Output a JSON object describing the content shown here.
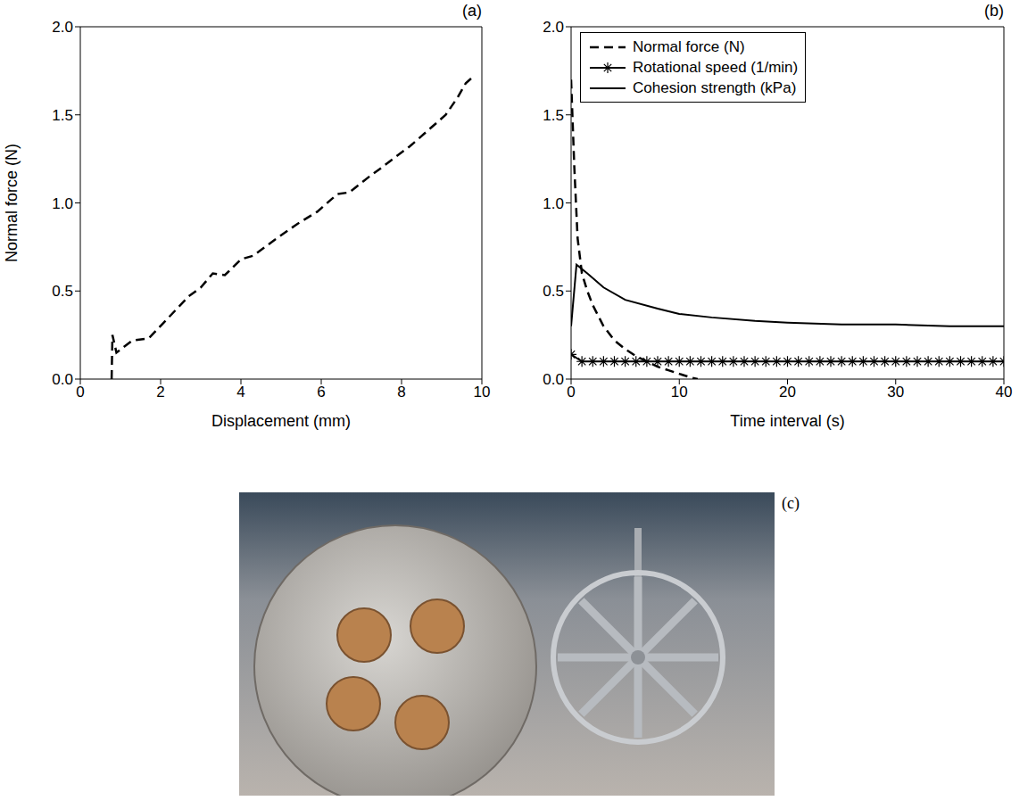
{
  "chart_data": [
    {
      "panel": "(a)",
      "type": "line",
      "xlabel": "Displacement (mm)",
      "ylabel": "Normal force (N)",
      "xlim": [
        0,
        10
      ],
      "xticks": [
        0,
        2,
        4,
        6,
        8,
        10
      ],
      "ylim": [
        0,
        2.0
      ],
      "yticks": [
        {
          "value": 0,
          "label": "0.0"
        },
        {
          "value": 0.5,
          "label": "0.5"
        },
        {
          "value": 1.0,
          "label": "1.0"
        },
        {
          "value": 1.5,
          "label": "1.5"
        },
        {
          "value": 2.0,
          "label": "2.0"
        }
      ],
      "grid": false,
      "color": "#000000",
      "line_style": "dashed",
      "x": [
        0.78,
        0.8,
        0.9,
        1.3,
        1.7,
        2.2,
        2.7,
        3.0,
        3.3,
        3.6,
        4.0,
        4.3,
        4.9,
        5.4,
        5.9,
        6.4,
        6.7,
        7.2,
        7.5,
        7.9,
        8.2,
        8.6,
        9.1,
        9.4,
        9.6,
        9.8
      ],
      "values": [
        0.0,
        0.25,
        0.15,
        0.22,
        0.23,
        0.35,
        0.47,
        0.52,
        0.6,
        0.59,
        0.68,
        0.7,
        0.8,
        0.88,
        0.95,
        1.05,
        1.06,
        1.15,
        1.2,
        1.27,
        1.32,
        1.4,
        1.5,
        1.6,
        1.68,
        1.72
      ]
    },
    {
      "panel": "(b)",
      "type": "line",
      "xlabel": "Time interval (s)",
      "xlim": [
        0,
        40
      ],
      "xticks": [
        0,
        10,
        20,
        30,
        40
      ],
      "ylim": [
        0,
        2.0
      ],
      "yticks": [
        {
          "value": 0,
          "label": "0.0"
        },
        {
          "value": 0.5,
          "label": "0.5"
        },
        {
          "value": 1.0,
          "label": "1.0"
        },
        {
          "value": 1.5,
          "label": "1.5"
        },
        {
          "value": 2.0,
          "label": "2.0"
        }
      ],
      "grid": false,
      "legend": "upper left",
      "series": [
        {
          "name": "Normal force (N)",
          "color": "#000000",
          "line_style": "dashed",
          "marker": "none",
          "x": [
            0,
            0.3,
            0.6,
            1,
            1.5,
            2,
            3,
            4,
            5,
            6,
            7,
            8,
            9,
            10,
            11,
            11.7
          ],
          "values": [
            1.7,
            1.2,
            0.8,
            0.6,
            0.5,
            0.42,
            0.3,
            0.22,
            0.17,
            0.13,
            0.1,
            0.07,
            0.05,
            0.03,
            0.01,
            0.0
          ]
        },
        {
          "name": "Rotational speed (1/min)",
          "color": "#000000",
          "line_style": "solid",
          "marker": "asterisk",
          "x": [
            0,
            1,
            2,
            3,
            4,
            5,
            6,
            7,
            8,
            9,
            10,
            11,
            12,
            13,
            14,
            15,
            16,
            17,
            18,
            19,
            20,
            21,
            22,
            23,
            24,
            25,
            26,
            27,
            28,
            29,
            30,
            31,
            32,
            33,
            34,
            35,
            36,
            37,
            38,
            39,
            40
          ],
          "values": [
            0.14,
            0.1,
            0.1,
            0.1,
            0.1,
            0.1,
            0.1,
            0.1,
            0.1,
            0.1,
            0.1,
            0.1,
            0.1,
            0.1,
            0.1,
            0.1,
            0.1,
            0.1,
            0.1,
            0.1,
            0.1,
            0.1,
            0.1,
            0.1,
            0.1,
            0.1,
            0.1,
            0.1,
            0.1,
            0.1,
            0.1,
            0.1,
            0.1,
            0.1,
            0.1,
            0.1,
            0.1,
            0.1,
            0.1,
            0.1,
            0.1
          ]
        },
        {
          "name": "Cohesion strength (kPa)",
          "color": "#000000",
          "line_style": "solid",
          "marker": "none",
          "x": [
            0,
            0.5,
            1.5,
            3,
            5,
            8,
            10,
            13,
            17,
            20,
            25,
            30,
            35,
            40
          ],
          "values": [
            0.3,
            0.65,
            0.6,
            0.52,
            0.45,
            0.4,
            0.37,
            0.35,
            0.33,
            0.32,
            0.31,
            0.31,
            0.3,
            0.3
          ]
        }
      ]
    }
  ],
  "photo": {
    "panel": "(c)"
  }
}
